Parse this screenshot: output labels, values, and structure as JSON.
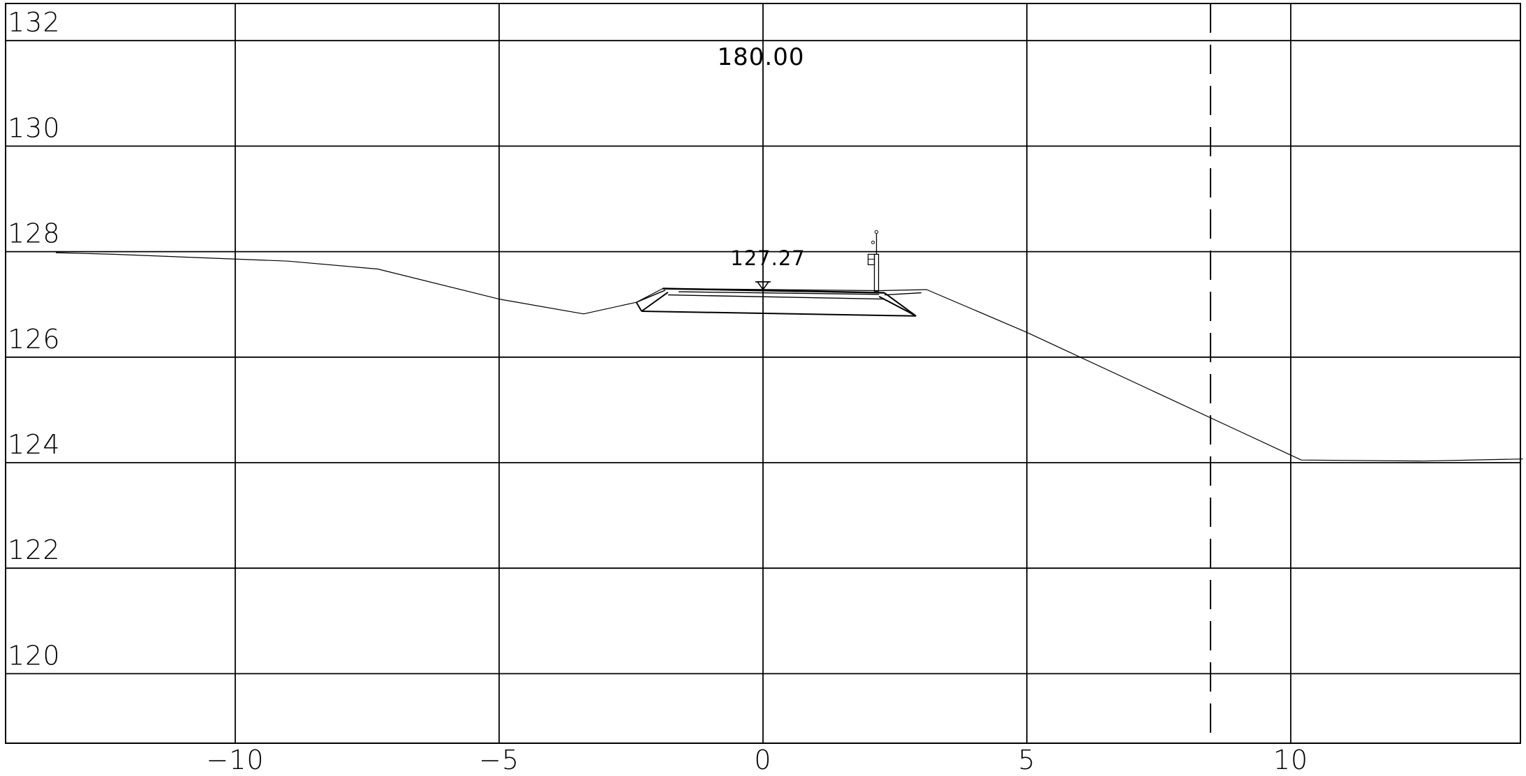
{
  "chart_data": {
    "type": "cross-section",
    "chainage_label": "180.00",
    "elevation_marker": {
      "label": "127.27",
      "x": 0,
      "y": 127.27
    },
    "xlim": [
      -14.4,
      14.4
    ],
    "ylim": [
      118.7,
      132.7
    ],
    "x_ticks": [
      {
        "value": -10,
        "label": "−10"
      },
      {
        "value": -5,
        "label": "−5"
      },
      {
        "value": 0,
        "label": "0"
      },
      {
        "value": 5,
        "label": "5"
      },
      {
        "value": 10,
        "label": "10"
      }
    ],
    "y_ticks": [
      {
        "value": 132,
        "label": "132"
      },
      {
        "value": 130,
        "label": "130"
      },
      {
        "value": 128,
        "label": "128"
      },
      {
        "value": 126,
        "label": "126"
      },
      {
        "value": 124,
        "label": "124"
      },
      {
        "value": 122,
        "label": "122"
      },
      {
        "value": 120,
        "label": "120"
      }
    ],
    "grid": true,
    "dashed_reference_x": 8.48,
    "ground_profile": [
      [
        -13.4,
        127.98
      ],
      [
        -12.3,
        127.95
      ],
      [
        -9.0,
        127.82
      ],
      [
        -7.3,
        127.67
      ],
      [
        -5.0,
        127.1
      ],
      [
        -3.4,
        126.82
      ],
      [
        -2.4,
        127.04
      ],
      [
        -1.9,
        127.3
      ],
      [
        2.2,
        127.26
      ],
      [
        3.1,
        127.28
      ],
      [
        5.0,
        126.47
      ],
      [
        10.2,
        124.05
      ],
      [
        12.5,
        124.03
      ],
      [
        14.4,
        124.07
      ]
    ],
    "embankment": {
      "top": [
        [
          -1.9,
          127.3
        ],
        [
          2.3,
          127.22
        ]
      ],
      "base": [
        [
          -2.3,
          126.87
        ],
        [
          2.9,
          126.78
        ]
      ],
      "left_side": [
        [
          -2.4,
          127.04
        ],
        [
          -2.3,
          126.87
        ]
      ],
      "right_side": [
        [
          2.3,
          127.22
        ],
        [
          2.9,
          126.78
        ]
      ],
      "left_inner": [
        [
          -2.3,
          126.87
        ],
        [
          -1.8,
          127.23
        ]
      ],
      "right_inner": [
        [
          2.2,
          127.15
        ],
        [
          2.9,
          126.78
        ]
      ],
      "ballast_lines": [
        [
          [
            -1.6,
            127.24
          ],
          [
            2.2,
            127.19
          ]
        ],
        [
          [
            -1.8,
            127.18
          ],
          [
            2.3,
            127.1
          ]
        ],
        [
          [
            -2.4,
            127.04
          ],
          [
            -1.85,
            127.27
          ]
        ],
        [
          [
            2.3,
            127.18
          ],
          [
            3.0,
            127.22
          ]
        ]
      ]
    },
    "mast": {
      "x": 2.15,
      "base_y": 127.25,
      "top_y": 128.4
    }
  }
}
